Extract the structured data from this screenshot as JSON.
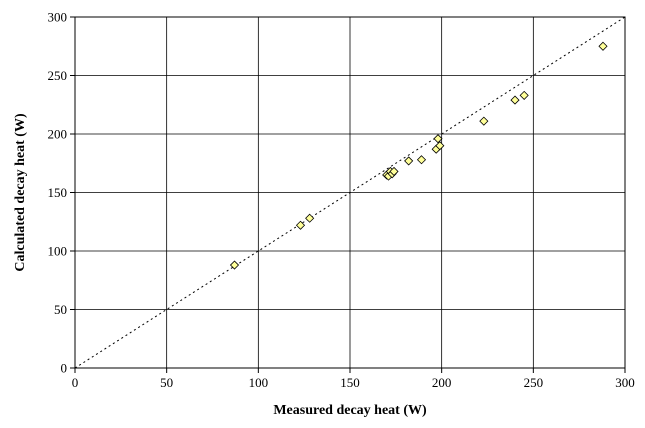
{
  "chart_data": {
    "type": "scatter",
    "title": "",
    "xlabel": "Measured decay heat (W)",
    "ylabel": "Calculated decay heat (W)",
    "xlim": [
      0,
      300
    ],
    "ylim": [
      0,
      300
    ],
    "x_ticks": [
      0,
      50,
      100,
      150,
      200,
      250,
      300
    ],
    "y_ticks": [
      0,
      50,
      100,
      150,
      200,
      250,
      300
    ],
    "grid": true,
    "legend": "none",
    "marker": "diamond",
    "marker_color": "#ffff99",
    "reference_line": "y = x (dotted)",
    "series": [
      {
        "x": [
          87,
          123,
          128,
          170,
          171,
          172,
          173,
          174,
          182,
          189,
          197,
          198,
          199,
          223,
          240,
          245,
          288
        ],
        "y": [
          88,
          122,
          128,
          165,
          164,
          168,
          166,
          168,
          177,
          178,
          187,
          196,
          190,
          211,
          229,
          233,
          275
        ]
      }
    ]
  }
}
